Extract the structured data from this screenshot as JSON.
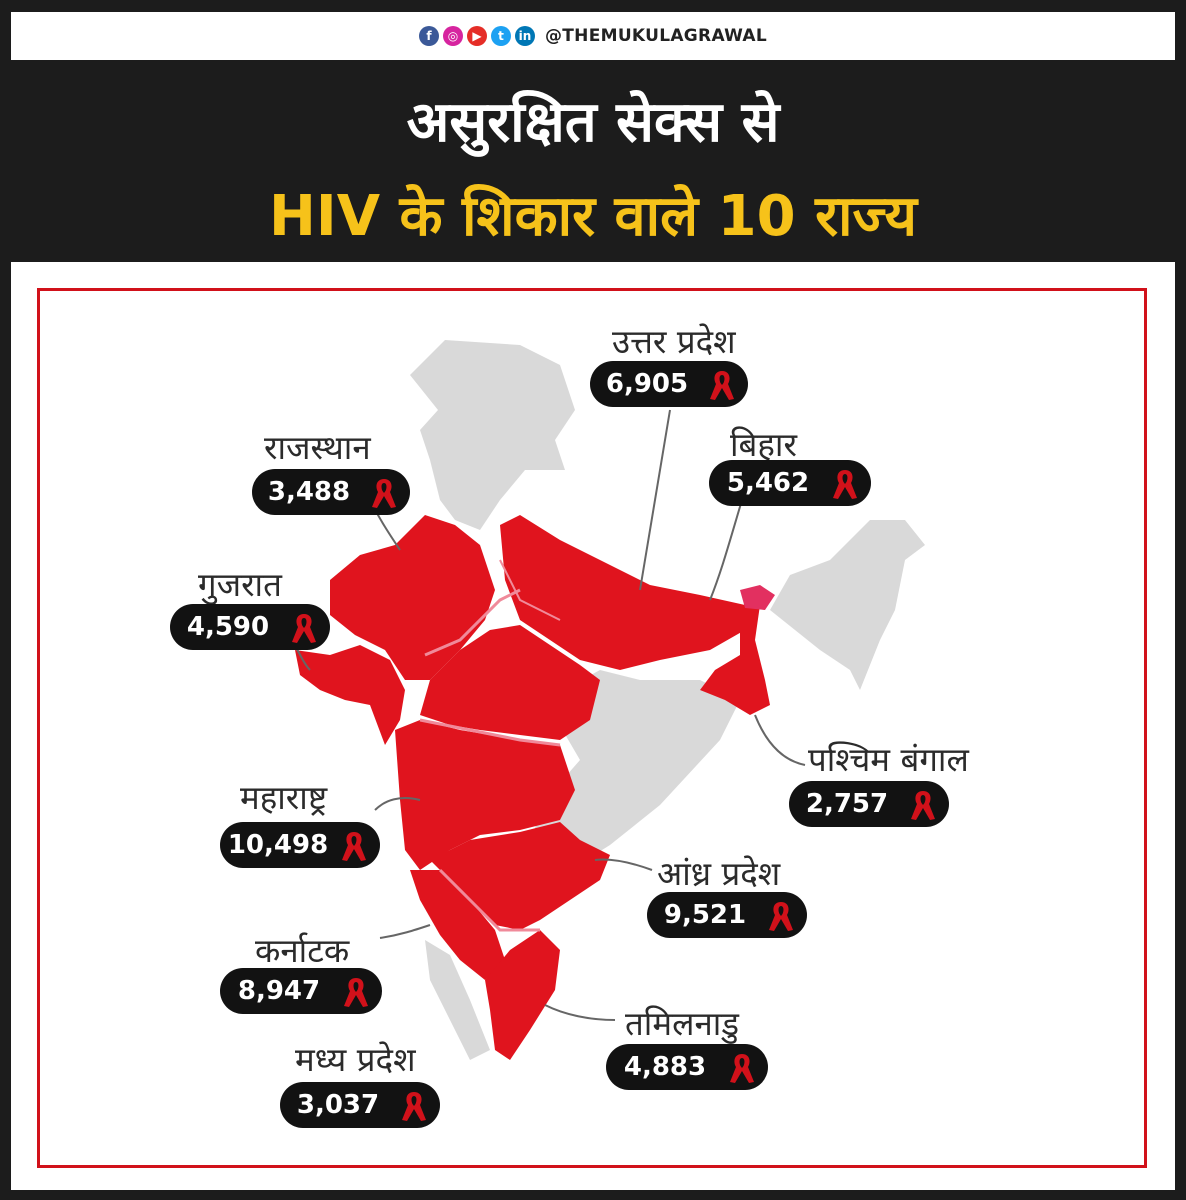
{
  "header": {
    "social_icons": [
      "facebook-icon",
      "instagram-icon",
      "youtube-icon",
      "twitter-icon",
      "linkedin-icon"
    ],
    "handle": "@THEMUKULAGRAWAL"
  },
  "title": {
    "line1": "असुरक्षित सेक्स से",
    "line2": "HIV के शिकार वाले 10 राज्य"
  },
  "colors": {
    "background": "#1c1c1c",
    "title_line2": "#f6c21a",
    "highlight_state": "#e0141e",
    "other_state": "#d9d9d9",
    "frame": "#d1111a",
    "pill": "#121212"
  },
  "states": [
    {
      "name": "उत्तर प्रदेश",
      "value": "6,905"
    },
    {
      "name": "बिहार",
      "value": "5,462"
    },
    {
      "name": "राजस्थान",
      "value": "3,488"
    },
    {
      "name": "गुजरात",
      "value": "4,590"
    },
    {
      "name": "पश्चिम बंगाल",
      "value": "2,757"
    },
    {
      "name": "महाराष्ट्र",
      "value": "10,498"
    },
    {
      "name": "आंध्र प्रदेश",
      "value": "9,521"
    },
    {
      "name": "कर्नाटक",
      "value": "8,947"
    },
    {
      "name": "तमिलनाडु",
      "value": "4,883"
    },
    {
      "name": "मध्य प्रदेश",
      "value": "3,037"
    }
  ]
}
